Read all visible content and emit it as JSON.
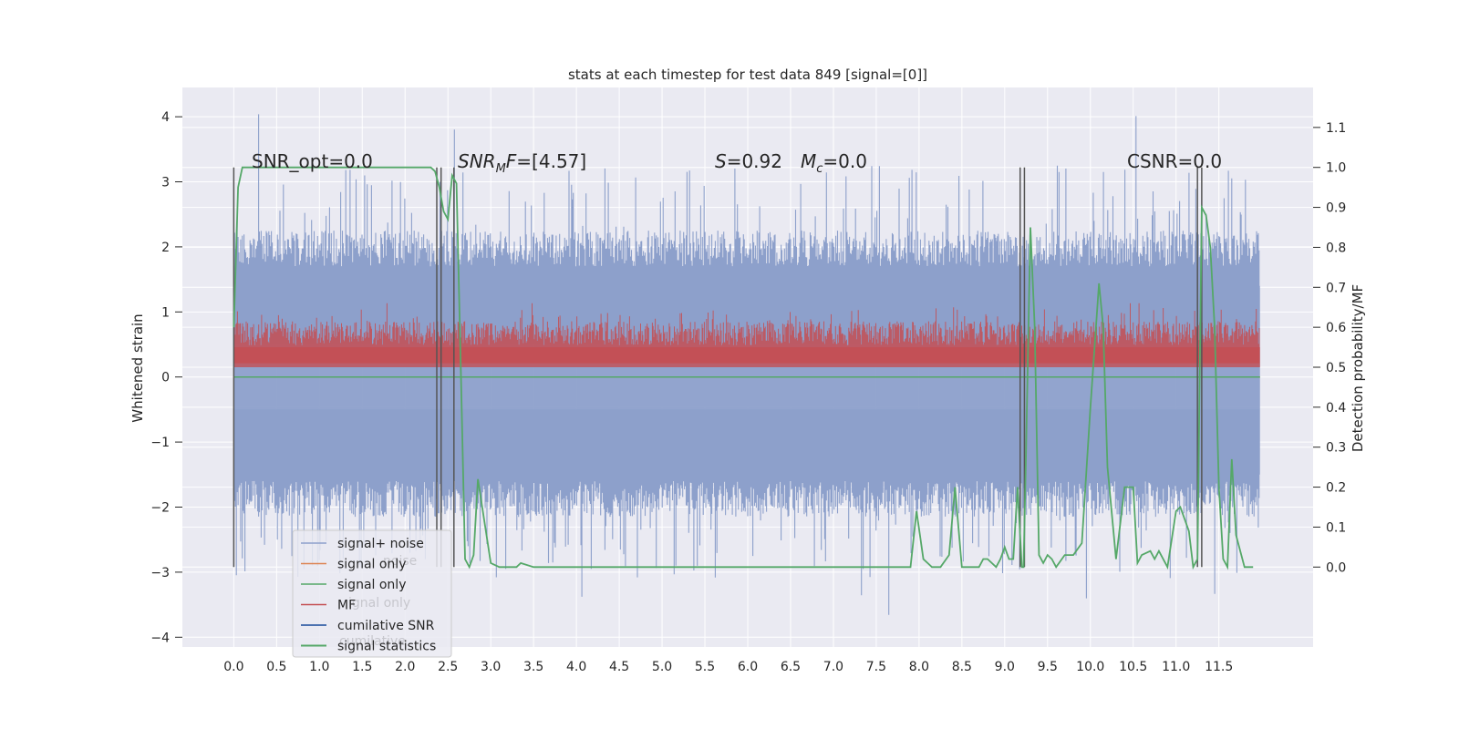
{
  "chart_data": {
    "type": "line",
    "title": "stats at each timestep for test data 849 [signal=[0]]",
    "ylabel_left": "Whitened strain",
    "ylabel_right": "Detection probability/MF",
    "xlim": [
      -0.6,
      12.6
    ],
    "ylim_left": [
      -4.15,
      4.45
    ],
    "ylim_right": [
      -0.2,
      1.2
    ],
    "x_ticks": [
      "0.0",
      "0.5",
      "1.0",
      "1.5",
      "2.0",
      "2.5",
      "3.0",
      "3.5",
      "4.0",
      "4.5",
      "5.0",
      "5.5",
      "6.0",
      "6.5",
      "7.0",
      "7.5",
      "8.0",
      "8.5",
      "9.0",
      "9.5",
      "10.0",
      "10.5",
      "11.0",
      "11.5"
    ],
    "y_ticks_left": [
      "−4",
      "−3",
      "−2",
      "−1",
      "0",
      "1",
      "2",
      "3",
      "4"
    ],
    "y_ticks_right": [
      "0.0",
      "0.1",
      "0.2",
      "0.3",
      "0.4",
      "0.5",
      "0.6",
      "0.7",
      "0.8",
      "0.9",
      "1.0",
      "1.1"
    ],
    "grid": true,
    "legend_position": "lower-left",
    "annotations": [
      {
        "text": "SNR_opt=0.0",
        "x": 0.2,
        "y": 3.25
      },
      {
        "text": "SNR_MF=[4.57]",
        "x": 2.6,
        "y": 3.25
      },
      {
        "text": "S=0.92",
        "x": 5.6,
        "y": 3.25
      },
      {
        "text": "M_c=0.0",
        "x": 6.6,
        "y": 3.25
      },
      {
        "text": "CSNR=0.0",
        "x": 10.4,
        "y": 3.25
      }
    ],
    "series": [
      {
        "name": "signal+ noise",
        "color": "#8da0cb",
        "axis": "left",
        "envelope_upper": 2.0,
        "envelope_lower": -1.9,
        "band": 1.4,
        "peak_max": 4.1,
        "peak_min": -3.8
      },
      {
        "name": "signal only",
        "color": "#dd8452",
        "axis": "left",
        "values": [
          0,
          0
        ]
      },
      {
        "name": "signal only",
        "color": "#55a868",
        "axis": "left",
        "values": [
          0,
          0
        ]
      },
      {
        "name": "MF",
        "color": "#c44e52",
        "axis": "right",
        "baseline": 0.5,
        "upper_range": [
          0.55,
          0.65
        ]
      },
      {
        "name": "cumilative SNR",
        "color": "#4c72b0",
        "axis": "right"
      },
      {
        "name": "signal statistics",
        "color": "#55a868",
        "axis": "right",
        "x": [
          0.0,
          0.05,
          0.1,
          0.15,
          0.3,
          2.3,
          2.35,
          2.4,
          2.45,
          2.5,
          2.55,
          2.6,
          2.65,
          2.7,
          2.75,
          2.8,
          2.85,
          2.9,
          3.0,
          3.1,
          3.3,
          3.35,
          3.5,
          7.9,
          7.97,
          8.05,
          8.15,
          8.25,
          8.35,
          8.42,
          8.5,
          8.6,
          8.7,
          8.75,
          8.8,
          8.9,
          8.95,
          9.0,
          9.05,
          9.1,
          9.15,
          9.2,
          9.22,
          9.25,
          9.3,
          9.35,
          9.4,
          9.45,
          9.5,
          9.55,
          9.6,
          9.7,
          9.8,
          9.9,
          10.0,
          10.1,
          10.15,
          10.2,
          10.3,
          10.4,
          10.5,
          10.55,
          10.6,
          10.7,
          10.75,
          10.8,
          10.9,
          11.0,
          11.05,
          11.15,
          11.2,
          11.25,
          11.3,
          11.35,
          11.4,
          11.45,
          11.5,
          11.55,
          11.6,
          11.65,
          11.7,
          11.8,
          11.9
        ],
        "values": [
          0.6,
          0.95,
          1.0,
          1.0,
          1.0,
          1.0,
          0.99,
          0.95,
          0.89,
          0.87,
          0.98,
          0.96,
          0.5,
          0.02,
          0.0,
          0.03,
          0.22,
          0.15,
          0.01,
          0.0,
          0.0,
          0.01,
          0.0,
          0.0,
          0.14,
          0.02,
          0.0,
          0.0,
          0.03,
          0.2,
          0.0,
          0.0,
          0.0,
          0.02,
          0.02,
          0.0,
          0.02,
          0.05,
          0.02,
          0.02,
          0.2,
          0.0,
          0.0,
          0.3,
          0.85,
          0.6,
          0.03,
          0.01,
          0.03,
          0.02,
          0.0,
          0.03,
          0.03,
          0.06,
          0.4,
          0.71,
          0.6,
          0.25,
          0.02,
          0.2,
          0.2,
          0.01,
          0.03,
          0.04,
          0.02,
          0.04,
          0.0,
          0.14,
          0.15,
          0.09,
          0.0,
          0.02,
          0.9,
          0.88,
          0.8,
          0.6,
          0.2,
          0.02,
          0.0,
          0.27,
          0.08,
          0.0,
          0.0
        ]
      }
    ],
    "vertical_lines_x": [
      0.0,
      2.37,
      2.42,
      2.57,
      9.18,
      9.23,
      11.25,
      11.3
    ]
  }
}
